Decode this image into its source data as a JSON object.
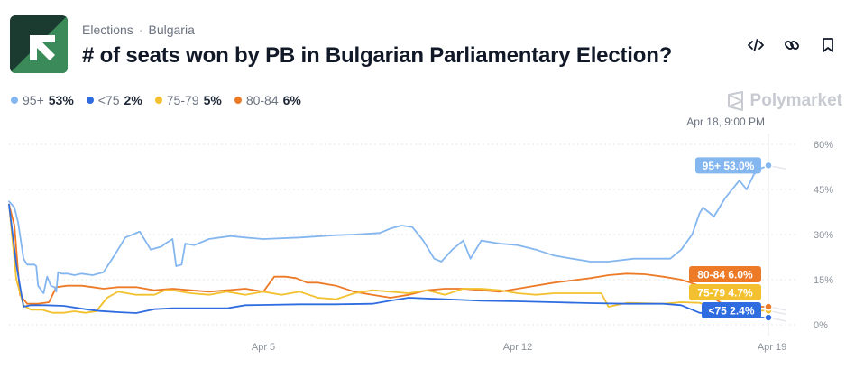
{
  "breadcrumb": {
    "category": "Elections",
    "separator": "·",
    "subcategory": "Bulgaria"
  },
  "title": "# of seats won by PB in Bulgarian Parliamentary Election?",
  "brand": "Polymarket",
  "icons": {
    "embed": "code-icon",
    "link": "link-icon",
    "bookmark": "bookmark-icon",
    "logo": "polymarket-arrow-logo-icon"
  },
  "legend": [
    {
      "name": "95+",
      "value": "53%",
      "color": "#84b6ef"
    },
    {
      "name": "<75",
      "value": "2%",
      "color": "#2f6ce0"
    },
    {
      "name": "75-79",
      "value": "5%",
      "color": "#f3c12f"
    },
    {
      "name": "80-84",
      "value": "6%",
      "color": "#ec7a27"
    }
  ],
  "chart_data": {
    "type": "line",
    "x_start": "Mar 29",
    "x_end": "Apr 19",
    "x_tick_labels": [
      "Apr 5",
      "Apr 12",
      "Apr 19"
    ],
    "x_ticks_day": [
      7,
      14,
      21
    ],
    "x_max_day": 20.9,
    "ylim": [
      0,
      60
    ],
    "y_ticks": [
      0,
      15,
      30,
      45,
      60
    ],
    "y_tick_labels": [
      "0%",
      "15%",
      "30%",
      "45%",
      "60%"
    ],
    "hover_label": "Apr 18, 9:00 PM",
    "grid": true,
    "series": [
      {
        "name": "95+",
        "color": "#84b6ef",
        "end_label": "95+ 53.0%",
        "end_value": 53.0,
        "x": [
          0,
          0.15,
          0.25,
          0.4,
          0.5,
          0.7,
          0.75,
          0.8,
          0.95,
          1.05,
          1.15,
          1.25,
          1.3,
          1.35,
          1.45,
          1.6,
          1.8,
          2.0,
          2.3,
          2.6,
          2.9,
          3.2,
          3.6,
          3.9,
          4.2,
          4.3,
          4.5,
          4.6,
          4.75,
          4.85,
          5.1,
          5.5,
          5.8,
          6.1,
          6.5,
          7,
          8,
          9,
          9.5,
          10.2,
          10.5,
          10.8,
          11.1,
          11.4,
          11.7,
          11.9,
          12.2,
          12.5,
          12.7,
          13.0,
          13.5,
          14,
          14.5,
          15,
          15.5,
          16,
          16.5,
          17.2,
          18.2,
          18.5,
          18.8,
          19.0,
          19.1,
          19.4,
          19.7,
          19.9,
          20.1,
          20.3,
          20.5,
          20.7,
          20.9
        ],
        "y": [
          41,
          39,
          34,
          22,
          20,
          20,
          19.5,
          13,
          10.5,
          16,
          13,
          12.5,
          11,
          17.5,
          17,
          17,
          16.5,
          17,
          16.5,
          17.5,
          23,
          29,
          31,
          25,
          26,
          27,
          28.5,
          19.5,
          20,
          27,
          26.5,
          28.5,
          29,
          29.5,
          29,
          28.5,
          29,
          29.8,
          30,
          30.5,
          32,
          33,
          32.5,
          28,
          22,
          21,
          25,
          28,
          22,
          28,
          27,
          26.5,
          25,
          23,
          22,
          21,
          21,
          22,
          22,
          25,
          30,
          37,
          39,
          36,
          42,
          45,
          48,
          45,
          50,
          52,
          53
        ]
      },
      {
        "name": "<75",
        "color": "#2f6ce0",
        "end_label": "<75 2.4%",
        "end_value": 2.4,
        "x": [
          0,
          0.2,
          0.4,
          0.6,
          1.0,
          1.5,
          2.2,
          2.5,
          3,
          3.5,
          4,
          4.5,
          5,
          6,
          6.5,
          7,
          8,
          9,
          10,
          10.5,
          11,
          12,
          13,
          14,
          15,
          16,
          17,
          18,
          18.5,
          19,
          19.5,
          20,
          20.3,
          20.6,
          20.9
        ],
        "y": [
          40,
          20,
          6,
          6.5,
          6.5,
          6.3,
          5,
          4.6,
          4.2,
          3.9,
          5.2,
          5.5,
          5.5,
          5.5,
          6.5,
          6.6,
          6.8,
          6.8,
          7,
          8,
          9,
          8.5,
          8,
          7.8,
          7.5,
          7.2,
          7,
          7,
          6.5,
          4,
          3.3,
          2.8,
          2.6,
          2.4,
          2.4
        ]
      },
      {
        "name": "75-79",
        "color": "#f3c12f",
        "end_label": "75-79 4.7%",
        "end_value": 4.7,
        "x": [
          0,
          0.2,
          0.4,
          0.6,
          0.9,
          1.2,
          1.5,
          1.8,
          2.1,
          2.4,
          2.7,
          3.0,
          3.5,
          4.0,
          4.3,
          4.5,
          5,
          5.5,
          6,
          6.5,
          7,
          7.5,
          8,
          8.5,
          9,
          9.5,
          10,
          10.5,
          11,
          11.5,
          12,
          12.5,
          13,
          13.5,
          14,
          14.5,
          15,
          15.5,
          16,
          16.3,
          16.5,
          17,
          18,
          18.5,
          19,
          19.5,
          20,
          20.3,
          20.6,
          20.9
        ],
        "y": [
          40,
          15,
          6.5,
          5,
          5,
          4,
          4,
          4.5,
          4,
          4.5,
          9,
          11,
          10,
          10,
          11.5,
          11.5,
          10.5,
          10,
          11,
          10,
          11,
          10,
          11,
          9,
          8.5,
          10.5,
          11.5,
          11,
          10.5,
          11.5,
          10,
          12,
          12,
          11.5,
          10.5,
          10,
          10.5,
          10.5,
          10.5,
          10.5,
          6,
          7.3,
          7,
          7.5,
          7.3,
          5.5,
          4.2,
          4.5,
          4.7,
          4.7
        ]
      },
      {
        "name": "80-84",
        "color": "#ec7a27",
        "end_label": "80-84 6.0%",
        "end_value": 6.0,
        "x": [
          0,
          0.15,
          0.3,
          0.5,
          0.8,
          1.1,
          1.3,
          1.6,
          2.0,
          2.3,
          2.6,
          3.0,
          3.5,
          4.0,
          4.5,
          5,
          5.5,
          6,
          6.5,
          7,
          7.3,
          7.6,
          7.9,
          8.2,
          8.5,
          9,
          9.5,
          10,
          10.5,
          11,
          11.5,
          12,
          12.5,
          13,
          13.5,
          14,
          15,
          16,
          16.5,
          17,
          17.5,
          18,
          18.5,
          19,
          19.3,
          19.6,
          20,
          20.3,
          20.6,
          20.9
        ],
        "y": [
          40,
          33,
          10,
          7,
          7,
          7.5,
          12.5,
          13,
          13,
          12.5,
          12,
          12.5,
          12.5,
          11.5,
          12,
          11.5,
          11,
          11.5,
          12,
          11,
          16,
          16,
          15.5,
          14,
          14,
          13,
          11,
          10,
          9,
          10,
          11.5,
          12,
          12,
          11.5,
          11,
          12,
          14,
          15.5,
          16.5,
          17,
          16.8,
          16,
          15,
          13,
          9.8,
          7.2,
          6.5,
          6.2,
          6.0,
          6.0
        ]
      }
    ]
  }
}
